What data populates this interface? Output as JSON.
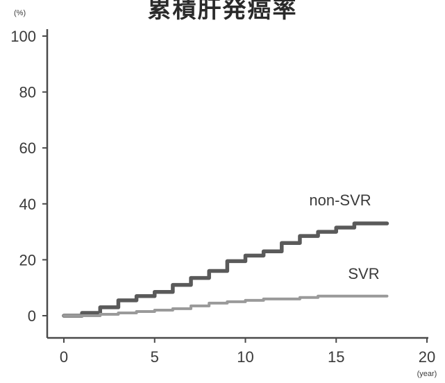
{
  "chart_data": {
    "type": "line",
    "title": "累積肝発癌率",
    "y_unit": "(%)",
    "x_unit": "(year)",
    "xlim": [
      0,
      20
    ],
    "ylim": [
      0,
      100
    ],
    "x_ticks": [
      0,
      5,
      10,
      15,
      20
    ],
    "y_ticks": [
      0,
      20,
      40,
      60,
      80,
      100
    ],
    "grid": false,
    "legend": "inline labels near series",
    "colors": {
      "non_svr": "#5a5a5a",
      "svr": "#9a9a9a",
      "axis": "#4a4a4a"
    },
    "series": [
      {
        "name": "non-SVR",
        "x": [
          0,
          1,
          2,
          3,
          4,
          5,
          6,
          7,
          8,
          9,
          10,
          11,
          12,
          13,
          14,
          15,
          16,
          17,
          17.8
        ],
        "y": [
          0,
          1,
          3,
          5.5,
          7,
          8.5,
          11,
          13.5,
          16,
          19.5,
          21.5,
          23,
          26,
          28.5,
          30,
          31.5,
          33,
          33,
          33
        ]
      },
      {
        "name": "SVR",
        "x": [
          0,
          1,
          2,
          3,
          4,
          5,
          6,
          7,
          8,
          9,
          10,
          11,
          12,
          13,
          14,
          15,
          16,
          17,
          17.8
        ],
        "y": [
          0,
          0,
          0.5,
          1,
          1.5,
          2,
          2.5,
          3.5,
          4.5,
          5,
          5.5,
          6,
          6,
          6.5,
          7,
          7,
          7,
          7,
          7
        ]
      }
    ]
  }
}
